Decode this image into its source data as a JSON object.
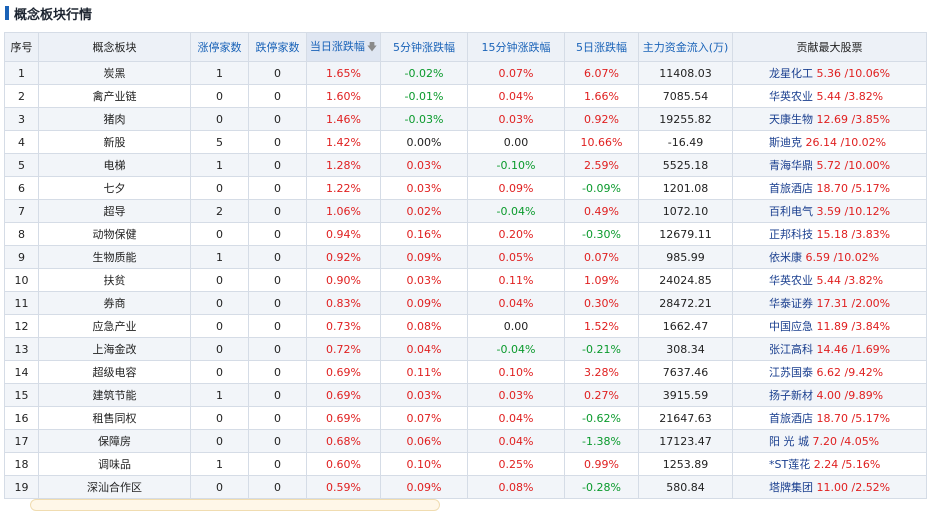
{
  "title": "概念板块行情",
  "headers": {
    "index": "序号",
    "sector": "概念板块",
    "limit_up": "涨停家数",
    "limit_down": "跌停家数",
    "day_change": "当日涨跌幅",
    "min5_change": "5分钟涨跌幅",
    "min15_change": "15分钟涨跌幅",
    "day5_change": "5日涨跌幅",
    "capital_flow": "主力资金流入(万)",
    "top_stock": "贡献最大股票"
  },
  "sort_icon": "arrow-down-icon",
  "colors": {
    "up": "#e02020",
    "down": "#0a9a2c",
    "accent": "#1a63b8"
  },
  "rows": [
    {
      "idx": "1",
      "name": "炭黑",
      "up": "1",
      "down": "0",
      "day": "1.65%",
      "m5": "-0.02%",
      "m15": "0.07%",
      "d5": "6.07%",
      "flow": "11408.03",
      "stock": "龙星化工",
      "sv": "5.36 /10.06%"
    },
    {
      "idx": "2",
      "name": "禽产业链",
      "up": "0",
      "down": "0",
      "day": "1.60%",
      "m5": "-0.01%",
      "m15": "0.04%",
      "d5": "1.66%",
      "flow": "7085.54",
      "stock": "华英农业",
      "sv": "5.44 /3.82%"
    },
    {
      "idx": "3",
      "name": "猪肉",
      "up": "0",
      "down": "0",
      "day": "1.46%",
      "m5": "-0.03%",
      "m15": "0.03%",
      "d5": "0.92%",
      "flow": "19255.82",
      "stock": "天康生物",
      "sv": "12.69 /3.85%"
    },
    {
      "idx": "4",
      "name": "新股",
      "up": "5",
      "down": "0",
      "day": "1.42%",
      "m5": "0.00%",
      "m15": "0.00",
      "d5": "10.66%",
      "flow": "-16.49",
      "stock": "斯迪克",
      "sv": "26.14 /10.02%"
    },
    {
      "idx": "5",
      "name": "电梯",
      "up": "1",
      "down": "0",
      "day": "1.28%",
      "m5": "0.03%",
      "m15": "-0.10%",
      "d5": "2.59%",
      "flow": "5525.18",
      "stock": "青海华鼎",
      "sv": "5.72 /10.00%"
    },
    {
      "idx": "6",
      "name": "七夕",
      "up": "0",
      "down": "0",
      "day": "1.22%",
      "m5": "0.03%",
      "m15": "0.09%",
      "d5": "-0.09%",
      "flow": "1201.08",
      "stock": "首旅酒店",
      "sv": "18.70 /5.17%"
    },
    {
      "idx": "7",
      "name": "超导",
      "up": "2",
      "down": "0",
      "day": "1.06%",
      "m5": "0.02%",
      "m15": "-0.04%",
      "d5": "0.49%",
      "flow": "1072.10",
      "stock": "百利电气",
      "sv": "3.59 /10.12%"
    },
    {
      "idx": "8",
      "name": "动物保健",
      "up": "0",
      "down": "0",
      "day": "0.94%",
      "m5": "0.16%",
      "m15": "0.20%",
      "d5": "-0.30%",
      "flow": "12679.11",
      "stock": "正邦科技",
      "sv": "15.18 /3.83%"
    },
    {
      "idx": "9",
      "name": "生物质能",
      "up": "1",
      "down": "0",
      "day": "0.92%",
      "m5": "0.09%",
      "m15": "0.05%",
      "d5": "0.07%",
      "flow": "985.99",
      "stock": "依米康",
      "sv": "6.59 /10.02%"
    },
    {
      "idx": "10",
      "name": "扶贫",
      "up": "0",
      "down": "0",
      "day": "0.90%",
      "m5": "0.03%",
      "m15": "0.11%",
      "d5": "1.09%",
      "flow": "24024.85",
      "stock": "华英农业",
      "sv": "5.44 /3.82%"
    },
    {
      "idx": "11",
      "name": "券商",
      "up": "0",
      "down": "0",
      "day": "0.83%",
      "m5": "0.09%",
      "m15": "0.04%",
      "d5": "0.30%",
      "flow": "28472.21",
      "stock": "华泰证券",
      "sv": "17.31 /2.00%"
    },
    {
      "idx": "12",
      "name": "应急产业",
      "up": "0",
      "down": "0",
      "day": "0.73%",
      "m5": "0.08%",
      "m15": "0.00",
      "d5": "1.52%",
      "flow": "1662.47",
      "stock": "中国应急",
      "sv": "11.89 /3.84%"
    },
    {
      "idx": "13",
      "name": "上海金改",
      "up": "0",
      "down": "0",
      "day": "0.72%",
      "m5": "0.04%",
      "m15": "-0.04%",
      "d5": "-0.21%",
      "flow": "308.34",
      "stock": "张江高科",
      "sv": "14.46 /1.69%"
    },
    {
      "idx": "14",
      "name": "超级电容",
      "up": "0",
      "down": "0",
      "day": "0.69%",
      "m5": "0.11%",
      "m15": "0.10%",
      "d5": "3.28%",
      "flow": "7637.46",
      "stock": "江苏国泰",
      "sv": "6.62 /9.42%"
    },
    {
      "idx": "15",
      "name": "建筑节能",
      "up": "1",
      "down": "0",
      "day": "0.69%",
      "m5": "0.03%",
      "m15": "0.03%",
      "d5": "0.27%",
      "flow": "3915.59",
      "stock": "扬子新材",
      "sv": "4.00 /9.89%"
    },
    {
      "idx": "16",
      "name": "租售同权",
      "up": "0",
      "down": "0",
      "day": "0.69%",
      "m5": "0.07%",
      "m15": "0.04%",
      "d5": "-0.62%",
      "flow": "21647.63",
      "stock": "首旅酒店",
      "sv": "18.70 /5.17%"
    },
    {
      "idx": "17",
      "name": "保障房",
      "up": "0",
      "down": "0",
      "day": "0.68%",
      "m5": "0.06%",
      "m15": "0.04%",
      "d5": "-1.38%",
      "flow": "17123.47",
      "stock": "阳 光 城",
      "sv": "7.20 /4.05%"
    },
    {
      "idx": "18",
      "name": "调味品",
      "up": "1",
      "down": "0",
      "day": "0.60%",
      "m5": "0.10%",
      "m15": "0.25%",
      "d5": "0.99%",
      "flow": "1253.89",
      "stock": "*ST莲花",
      "sv": "2.24 /5.16%"
    },
    {
      "idx": "19",
      "name": "深汕合作区",
      "up": "0",
      "down": "0",
      "day": "0.59%",
      "m5": "0.09%",
      "m15": "0.08%",
      "d5": "-0.28%",
      "flow": "580.84",
      "stock": "塔牌集团",
      "sv": "11.00 /2.52%"
    }
  ]
}
